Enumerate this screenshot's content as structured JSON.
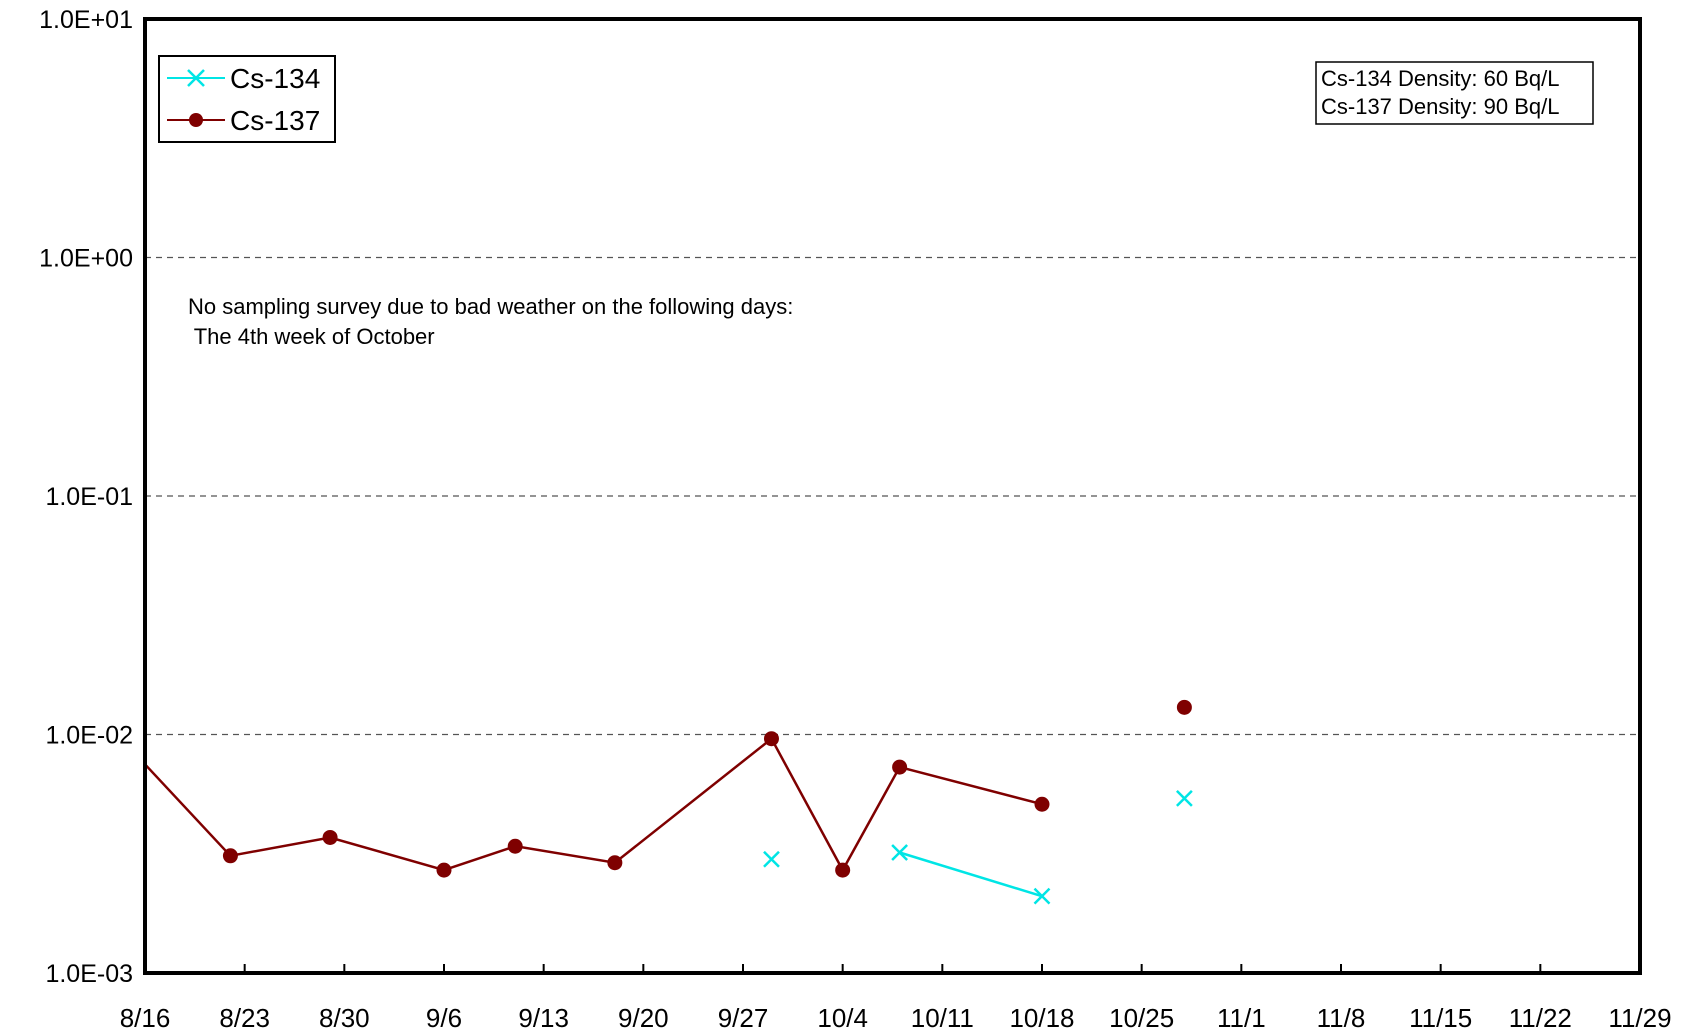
{
  "chart_data": {
    "type": "line",
    "title": "",
    "xlabel": "",
    "ylabel": "",
    "y_scale": "log",
    "ylim": [
      0.001,
      10
    ],
    "y_ticks": [
      {
        "value": 10,
        "label": "1.0E+01"
      },
      {
        "value": 1,
        "label": "1.0E+00"
      },
      {
        "value": 0.1,
        "label": "1.0E-01"
      },
      {
        "value": 0.01,
        "label": "1.0E-02"
      },
      {
        "value": 0.001,
        "label": "1.0E-03"
      }
    ],
    "y_grid": "dashed",
    "xlim": [
      "2011-08-16",
      "2011-11-29"
    ],
    "x_ticks": [
      {
        "date": "2011-08-16",
        "label": "8/16"
      },
      {
        "date": "2011-08-23",
        "label": "8/23"
      },
      {
        "date": "2011-08-30",
        "label": "8/30"
      },
      {
        "date": "2011-09-06",
        "label": "9/6"
      },
      {
        "date": "2011-09-13",
        "label": "9/13"
      },
      {
        "date": "2011-09-20",
        "label": "9/20"
      },
      {
        "date": "2011-09-27",
        "label": "9/27"
      },
      {
        "date": "2011-10-04",
        "label": "10/4"
      },
      {
        "date": "2011-10-11",
        "label": "10/11"
      },
      {
        "date": "2011-10-18",
        "label": "10/18"
      },
      {
        "date": "2011-10-25",
        "label": "10/25"
      },
      {
        "date": "2011-11-01",
        "label": "11/1"
      },
      {
        "date": "2011-11-08",
        "label": "11/8"
      },
      {
        "date": "2011-11-15",
        "label": "11/15"
      },
      {
        "date": "2011-11-22",
        "label": "11/22"
      },
      {
        "date": "2011-11-29",
        "label": "11/29"
      }
    ],
    "legend_position": "top-left",
    "series": [
      {
        "name": "Cs-134",
        "color": "#00e5e5",
        "marker": "x",
        "points": [
          {
            "date": "2011-09-29",
            "value": 0.003
          },
          {
            "date": "2011-10-08",
            "value": 0.0032
          },
          {
            "date": "2011-10-18",
            "value": 0.0021
          },
          {
            "date": "2011-10-28",
            "value": 0.0054
          }
        ],
        "segments": [
          [
            0
          ],
          [
            1,
            2
          ],
          [
            3
          ]
        ]
      },
      {
        "name": "Cs-137",
        "color": "#7f0000",
        "marker": "circle",
        "line_in_from_left": {
          "date": "2011-08-16",
          "value": 0.0075
        },
        "points": [
          {
            "date": "2011-08-22",
            "value": 0.0031
          },
          {
            "date": "2011-08-29",
            "value": 0.0037
          },
          {
            "date": "2011-09-06",
            "value": 0.0027
          },
          {
            "date": "2011-09-11",
            "value": 0.0034
          },
          {
            "date": "2011-09-18",
            "value": 0.0029
          },
          {
            "date": "2011-09-29",
            "value": 0.0096
          },
          {
            "date": "2011-10-04",
            "value": 0.0027
          },
          {
            "date": "2011-10-08",
            "value": 0.0073
          },
          {
            "date": "2011-10-18",
            "value": 0.0051
          },
          {
            "date": "2011-10-28",
            "value": 0.013
          }
        ],
        "segments": [
          [
            0,
            1,
            2,
            3,
            4,
            5,
            6,
            7,
            8
          ],
          [
            9
          ]
        ]
      }
    ],
    "annotations": {
      "note_lines": [
        "No sampling survey due to bad weather on the following days:",
        " The 4th week of October"
      ],
      "density_lines": [
        "Cs-134 Density: 60 Bq/L",
        "Cs-137 Density: 90 Bq/L"
      ]
    }
  }
}
